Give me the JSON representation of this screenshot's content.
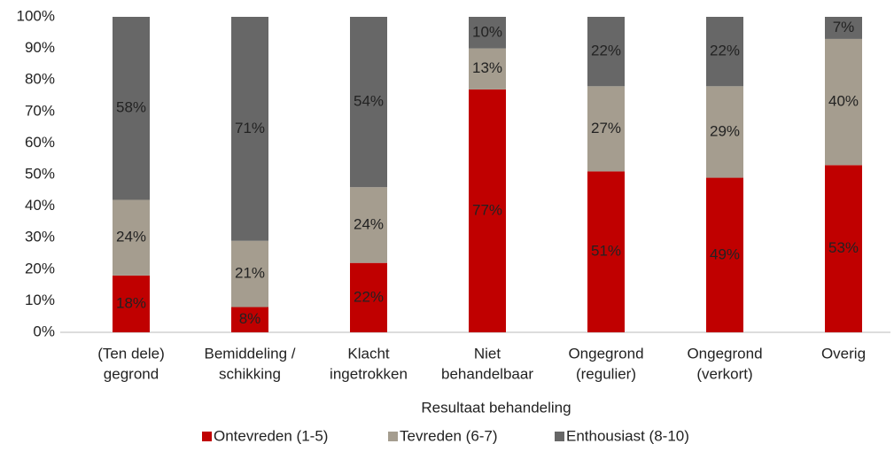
{
  "chart_data": {
    "type": "stacked_bar",
    "categories": [
      [
        "(Ten dele)",
        "gegrond"
      ],
      [
        "Bemiddeling /",
        "schikking"
      ],
      [
        "Klacht",
        "ingetrokken"
      ],
      [
        "Niet",
        "behandelbaar"
      ],
      [
        "Ongegrond",
        "(regulier)"
      ],
      [
        "Ongegrond",
        "(verkort)"
      ],
      [
        "Overig"
      ]
    ],
    "series": [
      {
        "name": "Ontevreden (1-5)",
        "color": "#c00000",
        "values": [
          18,
          8,
          22,
          77,
          51,
          49,
          53
        ],
        "value_labels": [
          "18%",
          "8%",
          "22%",
          "77%",
          "51%",
          "49%",
          "53%"
        ]
      },
      {
        "name": "Tevreden (6-7)",
        "color": "#a59d8f",
        "values": [
          24,
          21,
          24,
          13,
          27,
          29,
          40
        ],
        "value_labels": [
          "24%",
          "21%",
          "24%",
          "13%",
          "27%",
          "29%",
          "40%"
        ]
      },
      {
        "name": "Enthousiast (8-10)",
        "color": "#676767",
        "values": [
          58,
          71,
          54,
          10,
          22,
          22,
          7
        ],
        "value_labels": [
          "58%",
          "71%",
          "54%",
          "10%",
          "22%",
          "22%",
          "7%"
        ]
      }
    ],
    "xlabel": "Resultaat behandeling",
    "ylim": [
      0,
      100
    ],
    "yticks": [
      {
        "value": 0,
        "label": "0%"
      },
      {
        "value": 10,
        "label": "10%"
      },
      {
        "value": 20,
        "label": "20%"
      },
      {
        "value": 30,
        "label": "30%"
      },
      {
        "value": 40,
        "label": "40%"
      },
      {
        "value": 50,
        "label": "50%"
      },
      {
        "value": 60,
        "label": "60%"
      },
      {
        "value": 70,
        "label": "70%"
      },
      {
        "value": 80,
        "label": "80%"
      },
      {
        "value": 90,
        "label": "90%"
      },
      {
        "value": 100,
        "label": "100%"
      }
    ],
    "legend": "bottom"
  }
}
